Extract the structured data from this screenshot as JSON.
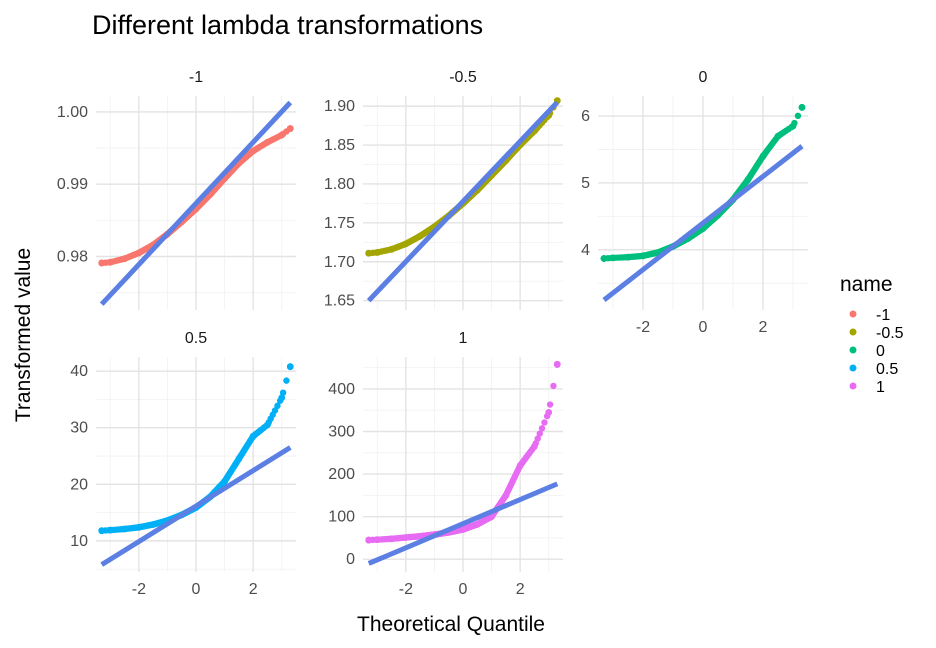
{
  "chart_data": {
    "type": "scatter",
    "title": "Different lambda transformations",
    "xlabel": "Theoretical Quantile",
    "ylabel": "Transformed value",
    "legend": {
      "title": "name",
      "position": "right",
      "entries": [
        {
          "label": "-1",
          "color": "#F8766D"
        },
        {
          "label": "-0.5",
          "color": "#A3A500"
        },
        {
          "label": "0",
          "color": "#00BF7D"
        },
        {
          "label": "0.5",
          "color": "#00B0F6"
        },
        {
          "label": "1",
          "color": "#E76BF3"
        }
      ]
    },
    "reference_line_color": "#5B7FE3",
    "grid": true,
    "x_ticks": [
      -2,
      0,
      2
    ],
    "xlim": [
      -3.5,
      3.5
    ],
    "panels": [
      {
        "strip": "-1",
        "series": "-1",
        "color": "#F8766D",
        "ylim": [
          0.9726,
          1.0022
        ],
        "y_ticks": [
          0.98,
          0.99,
          1.0
        ],
        "y_tick_labels": [
          "0.98",
          "0.99",
          "1.00"
        ],
        "line": {
          "x": [
            -3.3,
            3.3
          ],
          "y": [
            0.9734,
            1.0013
          ]
        },
        "points_x": [
          -3.3,
          -3.0,
          -2.5,
          -2.0,
          -1.5,
          -1.0,
          -0.5,
          0.0,
          0.5,
          1.0,
          1.5,
          2.0,
          2.5,
          3.0,
          3.3
        ],
        "points_y": [
          0.9791,
          0.9792,
          0.9797,
          0.9805,
          0.9816,
          0.9831,
          0.9848,
          0.9866,
          0.9886,
          0.9908,
          0.9929,
          0.9946,
          0.9958,
          0.9968,
          0.9977
        ]
      },
      {
        "strip": "-0.5",
        "series": "-0.5",
        "color": "#A3A500",
        "ylim": [
          1.638,
          1.913
        ],
        "y_ticks": [
          1.65,
          1.7,
          1.75,
          1.8,
          1.85,
          1.9
        ],
        "y_tick_labels": [
          "1.65",
          "1.70",
          "1.75",
          "1.80",
          "1.85",
          "1.90"
        ],
        "line": {
          "x": [
            -3.3,
            3.3
          ],
          "y": [
            1.65,
            1.905
          ]
        },
        "points_x": [
          -3.3,
          -3.0,
          -2.5,
          -2.0,
          -1.5,
          -1.0,
          -0.5,
          0.0,
          0.5,
          1.0,
          1.5,
          2.0,
          2.5,
          3.0,
          3.3
        ],
        "points_y": [
          1.711,
          1.712,
          1.716,
          1.723,
          1.733,
          1.745,
          1.759,
          1.775,
          1.792,
          1.811,
          1.83,
          1.85,
          1.868,
          1.888,
          1.907
        ]
      },
      {
        "strip": "0",
        "series": "0",
        "color": "#00BF7D",
        "ylim": [
          3.1,
          6.3
        ],
        "y_ticks": [
          4,
          5,
          6
        ],
        "y_tick_labels": [
          "4",
          "5",
          "6"
        ],
        "line": {
          "x": [
            -3.3,
            3.3
          ],
          "y": [
            3.25,
            5.55
          ]
        },
        "points_x": [
          -3.3,
          -3.0,
          -2.5,
          -2.0,
          -1.5,
          -1.0,
          -0.5,
          0.0,
          0.5,
          1.0,
          1.5,
          2.0,
          2.5,
          3.0,
          3.3
        ],
        "points_y": [
          3.87,
          3.88,
          3.89,
          3.91,
          3.96,
          4.05,
          4.17,
          4.32,
          4.52,
          4.75,
          5.05,
          5.4,
          5.7,
          5.85,
          6.13
        ]
      },
      {
        "strip": "0.5",
        "series": "0.5",
        "color": "#00B0F6",
        "ylim": [
          4.5,
          42.5
        ],
        "y_ticks": [
          10,
          20,
          30,
          40
        ],
        "y_tick_labels": [
          "10",
          "20",
          "30",
          "40"
        ],
        "line": {
          "x": [
            -3.3,
            3.3
          ],
          "y": [
            5.8,
            26.5
          ]
        },
        "points_x": [
          -3.3,
          -3.0,
          -2.5,
          -2.0,
          -1.5,
          -1.0,
          -0.5,
          0.0,
          0.5,
          1.0,
          1.5,
          2.0,
          2.5,
          3.0,
          3.3
        ],
        "points_y": [
          11.8,
          11.9,
          12.1,
          12.4,
          12.9,
          13.6,
          14.6,
          15.9,
          17.8,
          20.5,
          24.5,
          28.5,
          30.5,
          35.3,
          40.8
        ]
      },
      {
        "strip": "1",
        "series": "1",
        "color": "#E76BF3",
        "ylim": [
          -30,
          475
        ],
        "y_ticks": [
          0,
          100,
          200,
          300,
          400
        ],
        "y_tick_labels": [
          "0",
          "100",
          "200",
          "300",
          "400"
        ],
        "line": {
          "x": [
            -3.3,
            3.3
          ],
          "y": [
            -10,
            177
          ]
        },
        "points_x": [
          -3.3,
          -3.0,
          -2.5,
          -2.0,
          -1.5,
          -1.0,
          -0.5,
          0.0,
          0.5,
          1.0,
          1.5,
          2.0,
          2.5,
          3.0,
          3.3
        ],
        "points_y": [
          45,
          46,
          48,
          51,
          54,
          58,
          63,
          70,
          82,
          100,
          150,
          220,
          265,
          345,
          458
        ]
      }
    ]
  }
}
